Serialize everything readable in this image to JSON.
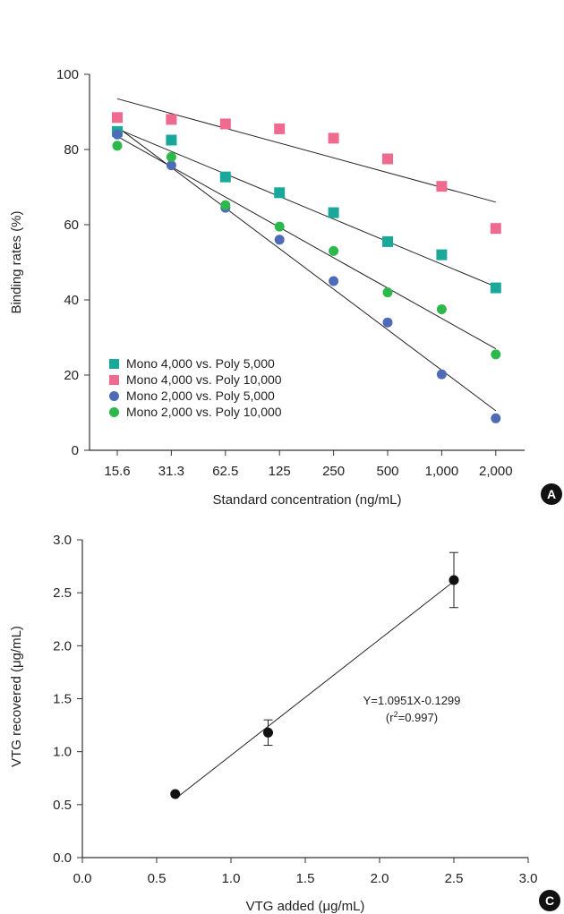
{
  "colors": {
    "axis": "#333333",
    "fit_line": "#222222",
    "series": [
      "#1aa89b",
      "#ef6a8f",
      "#4e6bb8",
      "#2cb84a"
    ],
    "point_c": "#111111",
    "badge": "#111111"
  },
  "chart_data": [
    {
      "panel": "A",
      "type": "scatter",
      "xlabel": "Standard concentration (ng/mL)",
      "ylabel": "Binding rates (%)",
      "categories": [
        "15.6",
        "31.3",
        "62.5",
        "125",
        "250",
        "500",
        "1,000",
        "2,000"
      ],
      "ylim": [
        0,
        100
      ],
      "yticks": [
        "0",
        "20",
        "40",
        "60",
        "80",
        "100"
      ],
      "legend_position": "bottom-left",
      "grid": false,
      "series": [
        {
          "name": "Mono 4,000 vs. Poly 5,000",
          "marker": "square",
          "values": [
            84.8,
            82.5,
            72.7,
            68.5,
            63.2,
            55.5,
            52.0,
            43.2
          ],
          "fit": [
            85.5,
            43.5
          ]
        },
        {
          "name": "Mono 4,000 vs. Poly 10,000",
          "marker": "square",
          "values": [
            88.5,
            88.0,
            86.8,
            85.5,
            83.0,
            77.5,
            70.2,
            59.0
          ],
          "fit": [
            93.5,
            66.0
          ]
        },
        {
          "name": "Mono 2,000 vs. Poly 5,000",
          "marker": "circle",
          "values": [
            84.0,
            75.8,
            64.5,
            56.0,
            45.0,
            34.0,
            20.2,
            8.5
          ],
          "fit": [
            86.0,
            10.5
          ]
        },
        {
          "name": "Mono 2,000 vs. Poly 10,000",
          "marker": "circle",
          "values": [
            81.0,
            78.0,
            65.2,
            59.5,
            53.0,
            42.0,
            37.5,
            25.5
          ],
          "fit": [
            83.5,
            27.0
          ]
        }
      ]
    },
    {
      "panel": "C",
      "type": "scatter",
      "xlabel": "VTG added (μg/mL)",
      "ylabel": "VTG recovered (μg/mL)",
      "xlim": [
        0,
        3
      ],
      "ylim": [
        0,
        3
      ],
      "xticks": [
        "0.0",
        "0.5",
        "1.0",
        "1.5",
        "2.0",
        "2.5",
        "3.0"
      ],
      "yticks": [
        "0.0",
        "0.5",
        "1.0",
        "1.5",
        "2.0",
        "2.5",
        "3.0"
      ],
      "grid": false,
      "points": [
        {
          "x": 0.625,
          "y": 0.6,
          "err": 0
        },
        {
          "x": 1.25,
          "y": 1.18,
          "err": 0.12
        },
        {
          "x": 2.5,
          "y": 2.62,
          "err": 0.26
        }
      ],
      "fit": {
        "slope": 1.0951,
        "intercept": -0.1299,
        "x_range": [
          0.625,
          2.5
        ]
      },
      "annotation": {
        "line1": "Y=1.0951X-0.1299",
        "line2_prefix": "(r",
        "line2_sup": "2",
        "line2_suffix": "=0.997)"
      }
    }
  ]
}
